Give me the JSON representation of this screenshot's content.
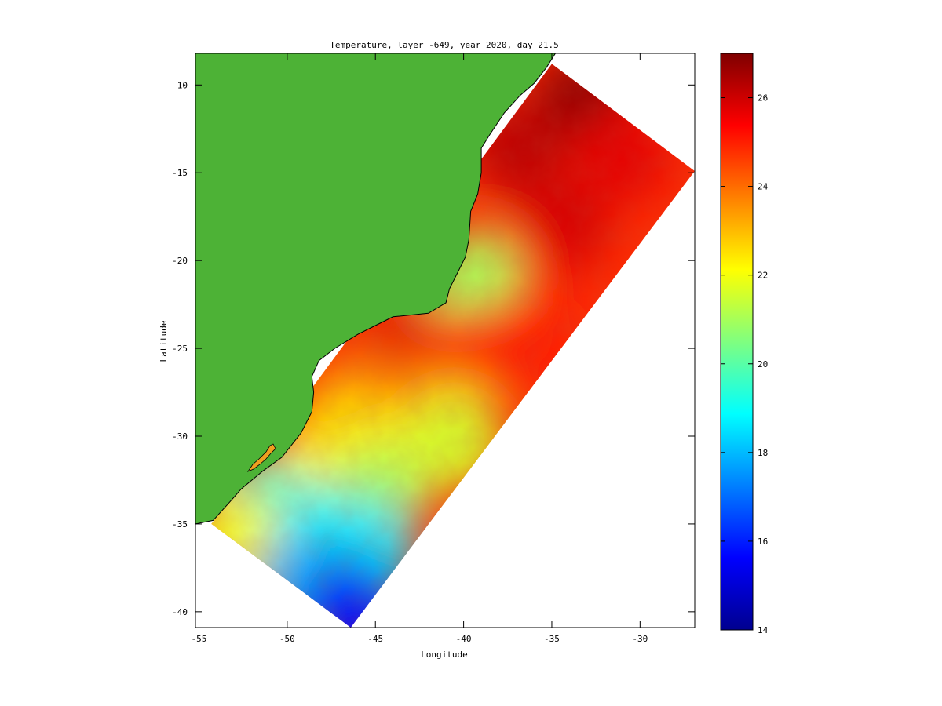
{
  "figure": {
    "title": "Temperature, layer -649, year 2020, day 21.5",
    "xlabel": "Longitude",
    "ylabel": "Latitude"
  },
  "chart_data": {
    "type": "heatmap",
    "title": "Temperature, layer -649, year 2020, day 21.5",
    "xlabel": "Longitude",
    "ylabel": "Latitude",
    "xlim": [
      -55.2,
      -26.9
    ],
    "ylim": [
      -40.9,
      -8.2
    ],
    "x_ticks": [
      -55,
      -50,
      -45,
      -40,
      -35,
      -30
    ],
    "x_tick_labels": [
      "-55",
      "-50",
      "-45",
      "-40",
      "-35",
      "-30"
    ],
    "y_ticks": [
      -10,
      -15,
      -20,
      -25,
      -30,
      -35,
      -40
    ],
    "y_tick_labels": [
      "-10",
      "-15",
      "-20",
      "-25",
      "-30",
      "-35",
      "-40"
    ],
    "colorbar": {
      "colormap": "jet",
      "range": [
        14,
        27
      ],
      "ticks": [
        14,
        16,
        18,
        20,
        22,
        24,
        26
      ],
      "tick_labels": [
        "14",
        "16",
        "18",
        "20",
        "22",
        "24",
        "26"
      ]
    },
    "land_color": "#4db236",
    "domain_corners": [
      [
        -35.0,
        -8.8
      ],
      [
        -26.9,
        -14.9
      ],
      [
        -46.4,
        -40.9
      ],
      [
        -54.3,
        -35.0
      ]
    ],
    "coastline": [
      [
        -55.2,
        -35.0
      ],
      [
        -54.2,
        -34.8
      ],
      [
        -53.3,
        -33.8
      ],
      [
        -52.6,
        -33.0
      ],
      [
        -51.4,
        -32.0
      ],
      [
        -50.3,
        -31.2
      ],
      [
        -49.2,
        -29.8
      ],
      [
        -48.6,
        -28.6
      ],
      [
        -48.5,
        -27.5
      ],
      [
        -48.6,
        -26.6
      ],
      [
        -48.2,
        -25.7
      ],
      [
        -47.3,
        -25.0
      ],
      [
        -46.0,
        -24.2
      ],
      [
        -45.0,
        -23.7
      ],
      [
        -44.0,
        -23.2
      ],
      [
        -42.0,
        -23.0
      ],
      [
        -41.0,
        -22.4
      ],
      [
        -40.8,
        -21.6
      ],
      [
        -40.3,
        -20.6
      ],
      [
        -39.9,
        -19.8
      ],
      [
        -39.7,
        -18.8
      ],
      [
        -39.6,
        -17.2
      ],
      [
        -39.2,
        -16.2
      ],
      [
        -39.0,
        -15.0
      ],
      [
        -39.0,
        -13.6
      ],
      [
        -38.5,
        -12.8
      ],
      [
        -37.7,
        -11.6
      ],
      [
        -36.8,
        -10.6
      ],
      [
        -36.0,
        -9.9
      ],
      [
        -35.3,
        -9.0
      ],
      [
        -34.8,
        -8.2
      ]
    ],
    "temperature_samples": [
      {
        "lon": -33.2,
        "lat": -10.8,
        "value": 26.8
      },
      {
        "lon": -37.0,
        "lat": -13.5,
        "value": 26.2
      },
      {
        "lon": -31.0,
        "lat": -14.0,
        "value": 25.7
      },
      {
        "lon": -34.5,
        "lat": -18.0,
        "value": 25.9
      },
      {
        "lon": -37.5,
        "lat": -20.5,
        "value": 25.4
      },
      {
        "lon": -39.5,
        "lat": -21.2,
        "value": 21.0
      },
      {
        "lon": -43.5,
        "lat": -25.3,
        "value": 25.8
      },
      {
        "lon": -40.0,
        "lat": -25.5,
        "value": 25.1
      },
      {
        "lon": -36.5,
        "lat": -24.5,
        "value": 25.0
      },
      {
        "lon": -45.5,
        "lat": -27.5,
        "value": 24.0
      },
      {
        "lon": -41.0,
        "lat": -28.5,
        "value": 23.5
      },
      {
        "lon": -47.0,
        "lat": -29.8,
        "value": 22.6
      },
      {
        "lon": -43.5,
        "lat": -31.2,
        "value": 22.0
      },
      {
        "lon": -40.5,
        "lat": -30.3,
        "value": 21.6
      },
      {
        "lon": -48.5,
        "lat": -32.5,
        "value": 22.2
      },
      {
        "lon": -45.0,
        "lat": -33.5,
        "value": 21.0
      },
      {
        "lon": -51.5,
        "lat": -34.0,
        "value": 19.5
      },
      {
        "lon": -48.5,
        "lat": -35.5,
        "value": 19.0
      },
      {
        "lon": -45.5,
        "lat": -36.5,
        "value": 18.6
      },
      {
        "lon": -53.0,
        "lat": -35.8,
        "value": 22.0
      },
      {
        "lon": -49.0,
        "lat": -38.0,
        "value": 18.0
      },
      {
        "lon": -46.5,
        "lat": -39.8,
        "value": 15.8
      }
    ]
  }
}
